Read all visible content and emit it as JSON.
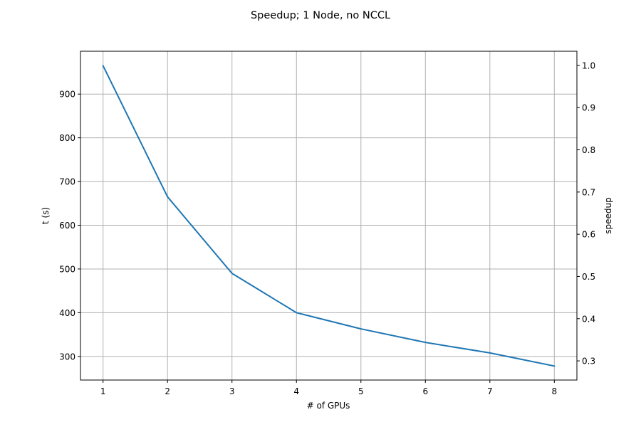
{
  "chart_data": {
    "type": "line",
    "title": "Speedup; 1 Node, no NCCL",
    "xlabel": "# of GPUs",
    "ylabel": "t (s)",
    "ylabel_right": "speedup",
    "x": [
      1,
      2,
      3,
      4,
      5,
      6,
      7,
      8
    ],
    "series": [
      {
        "values": [
          965,
          665,
          490,
          400,
          363,
          332,
          308,
          278
        ],
        "color": "#1f77b4"
      }
    ],
    "xticks": [
      1,
      2,
      3,
      4,
      5,
      6,
      7,
      8
    ],
    "yticks_left": [
      300,
      400,
      500,
      600,
      700,
      800,
      900
    ],
    "yticks_right": [
      "0.3",
      "0.4",
      "0.5",
      "0.6",
      "0.7",
      "0.8",
      "0.9",
      "1.0"
    ],
    "xlim": [
      0.65,
      8.35
    ],
    "ylim": [
      246,
      998
    ],
    "ylim_right": [
      0.2546,
      1.0336
    ],
    "grid": true
  }
}
